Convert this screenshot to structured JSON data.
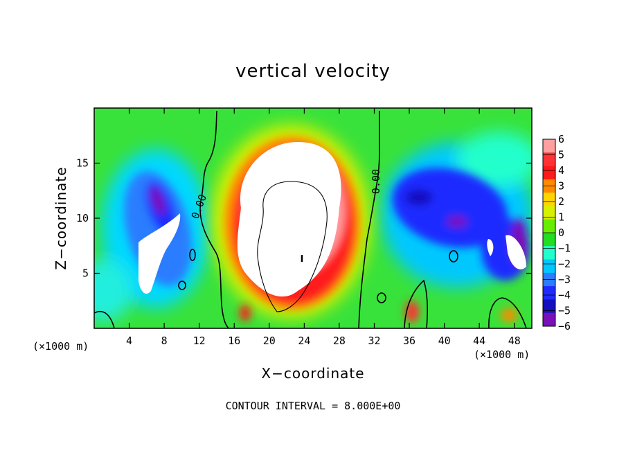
{
  "chart_data": {
    "type": "heatmap",
    "title": "vertical velocity",
    "xlabel": "X−coordinate",
    "ylabel": "Z−coordinate",
    "x_units": "(×1000 m)",
    "xlim": [
      0,
      50
    ],
    "ylim": [
      0,
      20
    ],
    "x_ticks": [
      4,
      8,
      12,
      16,
      20,
      24,
      28,
      32,
      36,
      40,
      44,
      48
    ],
    "x_tick_labels": [
      "4",
      "8",
      "12",
      "16",
      "20",
      "24",
      "28",
      "32",
      "36",
      "40",
      "44",
      "48"
    ],
    "y_ticks": [
      5,
      10,
      15
    ],
    "y_tick_labels": [
      "5",
      "10",
      "15"
    ],
    "colorbar": {
      "levels": [
        6,
        5,
        4,
        3,
        2,
        1,
        0,
        -1,
        -2,
        -3,
        -4,
        -5,
        -6
      ],
      "labels": [
        "6",
        "5",
        "4",
        "3",
        "2",
        "1",
        "0",
        "−1",
        "−2",
        "−3",
        "−4",
        "−5",
        "−6"
      ],
      "colors": [
        "#ff9fa0",
        "#ff3333",
        "#ff1a1a",
        "#ff8a00",
        "#ffd500",
        "#d7f000",
        "#66ee00",
        "#22dd22",
        "#22ffcc",
        "#00c8ff",
        "#2a7dff",
        "#1f2bff",
        "#1410c0",
        "#7a10b8"
      ]
    },
    "contour_labels": [
      "0.00",
      "0.00"
    ],
    "contour_interval_text": "CONTOUR INTERVAL = 8.000E+00"
  }
}
